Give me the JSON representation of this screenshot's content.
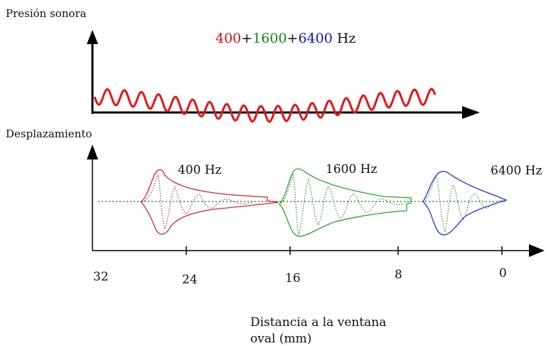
{
  "top_panel": {
    "ylabel": "Presión sonora",
    "title_parts": [
      {
        "text": "400",
        "color": "#cc1111"
      },
      {
        "text": "+",
        "color": "#111111"
      },
      {
        "text": "1600",
        "color": "#118811"
      },
      {
        "text": "+",
        "color": "#111111"
      },
      {
        "text": "6400",
        "color": "#1111cc"
      },
      {
        "text": " Hz",
        "color": "#111111"
      }
    ],
    "wave_color": "#ee1111"
  },
  "bottom_panel": {
    "ylabel": "Desplazamiento",
    "xlabel_line1": "Distancia a la ventana",
    "xlabel_line2": "oval (mm)",
    "ticks": [
      "32",
      "24",
      "16",
      "8",
      "0"
    ],
    "tick_values": [
      32,
      24,
      16,
      8,
      0
    ],
    "envelopes": [
      {
        "label": "400 Hz",
        "color": "#dd2222",
        "inner_color": "#7a1a8a"
      },
      {
        "label": "1600 Hz",
        "color": "#22aa22",
        "inner_color": "#1a7a1a"
      },
      {
        "label": "6400 Hz",
        "color": "#2233dd",
        "inner_color": "#1a7a1a"
      }
    ],
    "baseline_color": "#226622"
  }
}
